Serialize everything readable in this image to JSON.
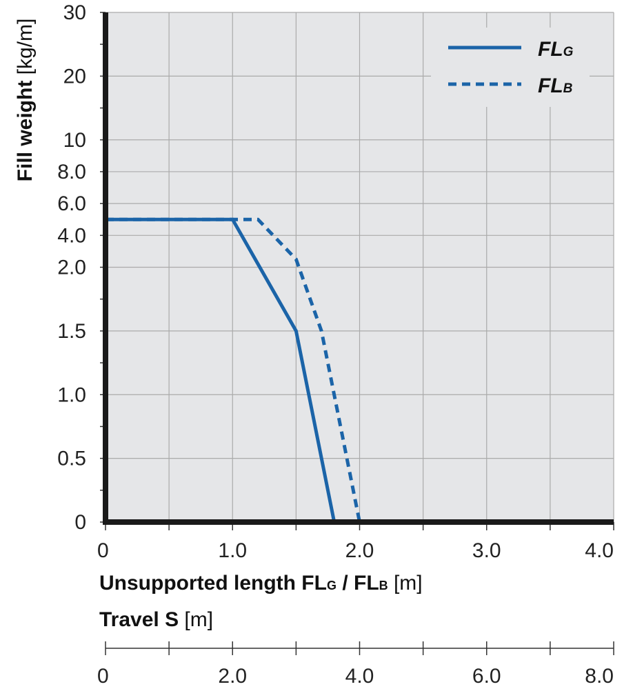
{
  "chart_data": {
    "type": "line",
    "ylabel": {
      "bold": "Fill weight",
      "unit": " [kg/m]"
    },
    "xlabel": {
      "bold": "Unsupported length FL",
      "sub1": "G",
      "mid": " / FL",
      "sub2": "B",
      "unit": " [m]"
    },
    "x2label": {
      "bold": "Travel S",
      "unit": " [m]"
    },
    "xlim": [
      0,
      4.0
    ],
    "x_ticks": [
      0,
      0.5,
      1.0,
      1.5,
      2.0,
      2.5,
      3.0,
      3.5,
      4.0
    ],
    "x_tick_labels": [
      {
        "value": 0,
        "label": "0"
      },
      {
        "value": 1.0,
        "label": "1.0"
      },
      {
        "value": 2.0,
        "label": "2.0"
      },
      {
        "value": 3.0,
        "label": "3.0"
      },
      {
        "value": 4.0,
        "label": "4.0"
      }
    ],
    "x2lim": [
      0,
      8.0
    ],
    "x2_ticks": [
      0,
      1.0,
      2.0,
      3.0,
      4.0,
      5.0,
      6.0,
      7.0,
      8.0
    ],
    "x2_tick_labels": [
      {
        "value": 0,
        "label": "0"
      },
      {
        "value": 2.0,
        "label": "2.0"
      },
      {
        "value": 4.0,
        "label": "4.0"
      },
      {
        "value": 6.0,
        "label": "6.0"
      },
      {
        "value": 8.0,
        "label": "8.0"
      }
    ],
    "y_scale": "categorical (non-uniform tick spacing)",
    "y_ticks": [
      {
        "label": "0",
        "value": 0
      },
      {
        "label": "",
        "value": null
      },
      {
        "label": "0.5",
        "value": 0.5
      },
      {
        "label": "",
        "value": null
      },
      {
        "label": "1.0",
        "value": 1.0
      },
      {
        "label": "",
        "value": null
      },
      {
        "label": "1.5",
        "value": 1.5
      },
      {
        "label": "",
        "value": null
      },
      {
        "label": "2.0",
        "value": 2.0
      },
      {
        "label": "4.0",
        "value": 4.0
      },
      {
        "label": "6.0",
        "value": 6.0
      },
      {
        "label": "8.0",
        "value": 8.0
      },
      {
        "label": "10",
        "value": 10
      },
      {
        "label": "",
        "value": null
      },
      {
        "label": "20",
        "value": 20
      },
      {
        "label": "",
        "value": null
      },
      {
        "label": "30",
        "value": 30
      }
    ],
    "grid": true,
    "legend_position": "top-right",
    "series": [
      {
        "name": "FLG",
        "legend_main": "FL",
        "legend_sub": "G",
        "style": "solid",
        "color": "#1b64a8",
        "points": [
          {
            "x": 0,
            "y": 5.0
          },
          {
            "x": 1.0,
            "y": 5.0
          },
          {
            "x": 1.5,
            "y": 1.5
          },
          {
            "x": 1.8,
            "y": 0
          }
        ]
      },
      {
        "name": "FLB",
        "legend_main": "FL",
        "legend_sub": "B",
        "style": "dashed",
        "color": "#1b64a8",
        "points": [
          {
            "x": 0,
            "y": 5.0
          },
          {
            "x": 1.2,
            "y": 5.0
          },
          {
            "x": 1.5,
            "y": 2.5
          },
          {
            "x": 1.7,
            "y": 1.5
          },
          {
            "x": 2.0,
            "y": 0
          }
        ]
      }
    ]
  },
  "colors": {
    "plot_background": "#e5e6e8",
    "grid": "#aaaaaa",
    "axis": "#1a1a1a",
    "series": "#1b64a8"
  }
}
